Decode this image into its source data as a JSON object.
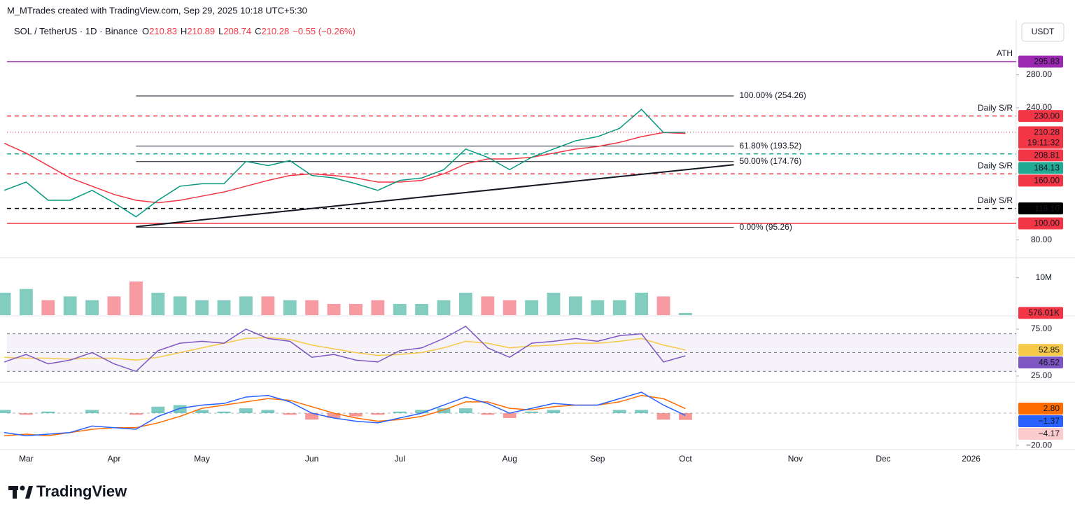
{
  "header": {
    "attribution": "M_MTrades created with TradingView.com, Sep 29, 2025 10:18 UTC+5:30"
  },
  "currency": "USDT",
  "logo": "TradingView",
  "chart_data": [
    {
      "type": "line",
      "title": "SOL / TetherUS · 1D · Binance",
      "quote": [
        {
          "key": "O",
          "value": 210.83
        },
        {
          "key": "H",
          "value": 210.89
        },
        {
          "key": "L",
          "value": 208.74
        },
        {
          "key": "C",
          "value": 210.28
        }
      ],
      "change": {
        "value": -0.55,
        "label": "−0.55 (−0.26%)"
      },
      "quote_color": "#f23645",
      "categories": [
        null,
        "Mar",
        null,
        null,
        null,
        "Apr",
        null,
        null,
        null,
        "May",
        null,
        null,
        null,
        null,
        "Jun",
        null,
        null,
        null,
        "Jul",
        null,
        null,
        null,
        null,
        "Aug",
        null,
        null,
        null,
        "Sep",
        null,
        null,
        null,
        "Oct",
        null,
        null,
        null,
        null,
        "Nov",
        null,
        null,
        null,
        "Dec",
        null,
        null,
        null,
        "2026"
      ],
      "ylim": [
        61,
        345
      ],
      "yticks": [
        {
          "value": 80,
          "label": "80.00"
        },
        {
          "value": 240,
          "label": "240.00"
        },
        {
          "value": 280,
          "label": "280.00"
        }
      ],
      "grid": false,
      "countdown": "19:11:32",
      "series": [
        {
          "color": "#089981",
          "values": [
            140,
            150,
            128,
            128,
            140,
            125,
            108,
            128,
            145,
            148,
            148,
            175,
            170,
            176,
            158,
            155,
            148,
            140,
            152,
            155,
            165,
            190,
            180,
            165,
            180,
            190,
            200,
            205,
            215,
            238,
            210,
            210.28,
            null,
            null,
            null,
            null,
            null,
            null,
            null,
            null,
            null,
            null,
            null,
            null,
            null
          ]
        },
        {
          "color": "#f23645",
          "values": [
            197,
            185,
            170,
            155,
            145,
            135,
            128,
            125,
            128,
            133,
            138,
            145,
            152,
            158,
            160,
            158,
            155,
            150,
            150,
            152,
            160,
            172,
            178,
            178,
            180,
            185,
            190,
            193,
            198,
            205,
            210,
            208.81,
            null,
            null,
            null,
            null,
            null,
            null,
            null,
            null,
            null,
            null,
            null,
            null,
            null
          ]
        }
      ],
      "levels": [
        {
          "value": 295.83,
          "label": "295.83",
          "note": "ATH",
          "color": "#9c27b0",
          "style": "solid"
        },
        {
          "value": 230,
          "label": "230.00",
          "note": "Daily S/R",
          "color": "#f23645",
          "style": "dashed"
        },
        {
          "value": 184.13,
          "label": "184.13",
          "color": "#22ab94",
          "style": "dashed"
        },
        {
          "value": 160,
          "label": "160.00",
          "note": "Daily S/R",
          "color": "#f23645",
          "style": "dashed"
        },
        {
          "value": 118.1,
          "label": "118.10",
          "note": "Daily S/R",
          "color": "#000000",
          "style": "dashed"
        },
        {
          "value": 100,
          "label": "100.00",
          "color": "#f23645",
          "style": "solid"
        }
      ],
      "fib": {
        "color": "#131722",
        "levels": [
          {
            "value": 254.26,
            "label": "100.00% (254.26)"
          },
          {
            "value": 193.52,
            "label": "61.80% (193.52)"
          },
          {
            "value": 174.76,
            "label": "50.00% (174.76)"
          },
          {
            "value": 95.26,
            "label": "0.00% (95.26)"
          }
        ]
      },
      "trendline": {
        "color": "#131722",
        "values": [
          96,
          171
        ]
      }
    },
    {
      "type": "bar",
      "ylim": [
        0,
        15000000
      ],
      "yticks": [
        {
          "value": 10000000,
          "label": "10M"
        }
      ],
      "color_up": "#089981",
      "color_down": "#f23645",
      "values": [
        6000000,
        7000000,
        4000000,
        5000000,
        4000000,
        5000000,
        9000000,
        6000000,
        5000000,
        4000000,
        4000000,
        5000000,
        5000000,
        4000000,
        4000000,
        3000000,
        3000000,
        4000000,
        3000000,
        3000000,
        4000000,
        6000000,
        5000000,
        4000000,
        4000000,
        6000000,
        5000000,
        4000000,
        4000000,
        6000000,
        5000000,
        576010,
        null,
        null,
        null,
        null,
        null,
        null,
        null,
        null,
        null,
        null,
        null,
        null,
        null
      ],
      "last_label": "576.01K"
    },
    {
      "type": "line",
      "ylim": [
        18.3,
        88.4
      ],
      "yticks": [
        {
          "value": 25,
          "label": "25.00"
        },
        {
          "value": 75,
          "label": "75.00"
        }
      ],
      "bands": [
        30,
        50,
        70
      ],
      "band_color": "#7e57c2",
      "series": [
        {
          "color": "#7e57c2",
          "values": [
            40,
            48,
            38,
            42,
            50,
            38,
            30,
            52,
            60,
            62,
            60,
            75,
            65,
            62,
            45,
            48,
            42,
            40,
            52,
            55,
            65,
            78,
            55,
            45,
            60,
            62,
            65,
            62,
            68,
            70,
            40,
            46.52,
            null,
            null,
            null,
            null,
            null,
            null,
            null,
            null,
            null,
            null,
            null,
            null,
            null
          ]
        },
        {
          "color": "#f7c948",
          "values": [
            45,
            44,
            44,
            43,
            44,
            44,
            42,
            45,
            50,
            55,
            60,
            65,
            66,
            64,
            58,
            54,
            50,
            47,
            48,
            50,
            55,
            62,
            60,
            55,
            57,
            58,
            60,
            60,
            62,
            65,
            58,
            52.85,
            null,
            null,
            null,
            null,
            null,
            null,
            null,
            null,
            null,
            null,
            null,
            null,
            null
          ]
        }
      ]
    },
    {
      "type": "line",
      "ylim": [
        -21.7,
        19.1
      ],
      "yticks": [
        {
          "value": -20,
          "label": "−20.00"
        }
      ],
      "zero_line": 0,
      "series": [
        {
          "color": "#2962ff",
          "last_label": "−1.37",
          "values": [
            -12,
            -14,
            -13,
            -12,
            -8,
            -9,
            -10,
            -2,
            3,
            5,
            6,
            10,
            11,
            7,
            0,
            -3,
            -5,
            -6,
            -3,
            0,
            5,
            10,
            6,
            0,
            3,
            6,
            5,
            5,
            9,
            13,
            5,
            -1.37,
            null,
            null,
            null,
            null,
            null,
            null,
            null,
            null,
            null,
            null,
            null,
            null,
            null
          ]
        },
        {
          "color": "#ff6d00",
          "last_label": "2.80",
          "values": [
            -14,
            -13,
            -14,
            -12,
            -10,
            -9,
            -9,
            -6,
            -2,
            3,
            5,
            7,
            9,
            8,
            4,
            0,
            -3,
            -5,
            -4,
            -2,
            2,
            7,
            7,
            3,
            2,
            4,
            5,
            5,
            7,
            11,
            9,
            2.8,
            null,
            null,
            null,
            null,
            null,
            null,
            null,
            null,
            null,
            null,
            null,
            null,
            null
          ]
        }
      ],
      "histogram": {
        "color_up": "#26a69a",
        "color_down": "#ef5350",
        "tag_color": "#fccbcd",
        "last_label": "−4.17",
        "values": [
          2,
          -1,
          1,
          0,
          2,
          0,
          -1,
          4,
          5,
          2,
          1,
          3,
          2,
          -1,
          -4,
          -3,
          -2,
          -1,
          1,
          2,
          3,
          3,
          -1,
          -3,
          1,
          2,
          0,
          0,
          2,
          2,
          -4,
          -4.17,
          null,
          null,
          null,
          null,
          null,
          null,
          null,
          null,
          null,
          null,
          null,
          null,
          null
        ]
      }
    }
  ]
}
